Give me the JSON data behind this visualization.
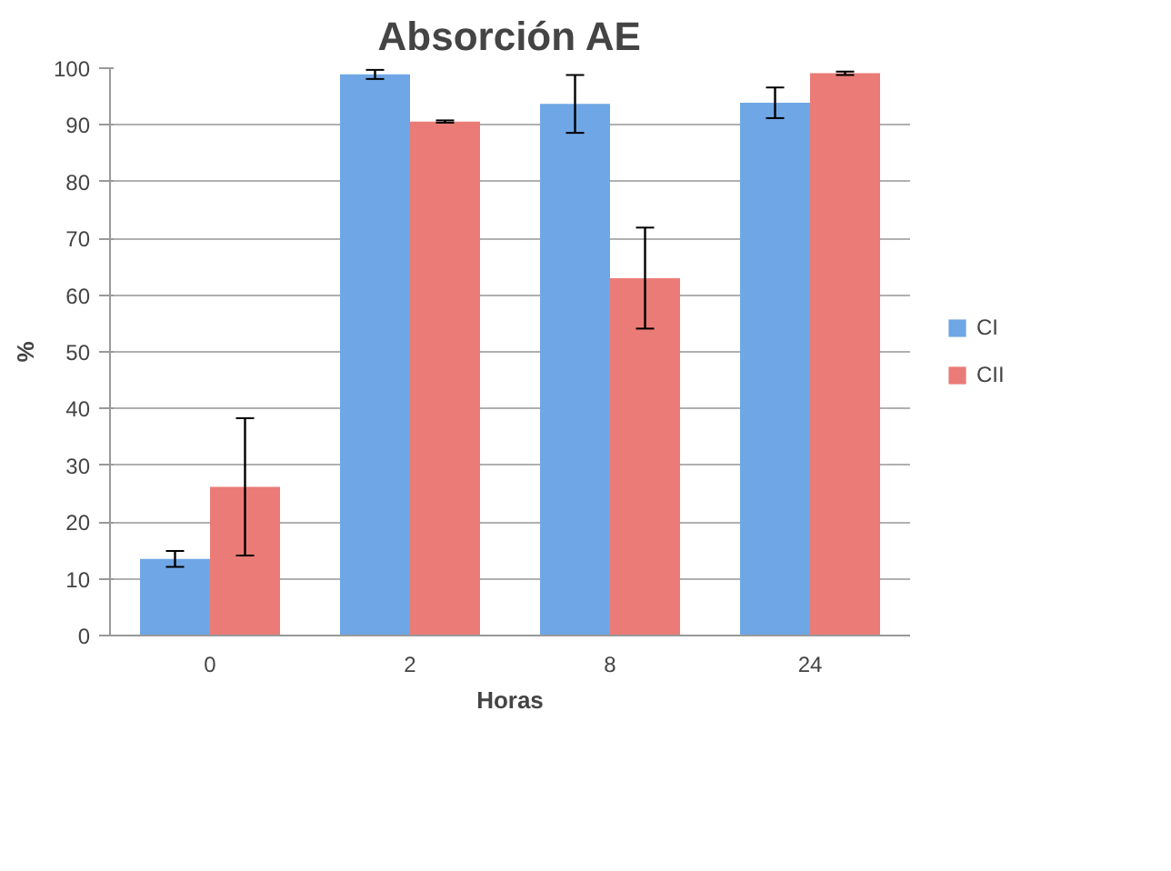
{
  "chart_data": {
    "type": "bar",
    "title": "Absorción AE",
    "xlabel": "Horas",
    "ylabel": "%",
    "categories": [
      "0",
      "2",
      "8",
      "24"
    ],
    "series": [
      {
        "name": "CI",
        "color": "#6fa6e6",
        "values": [
          13.5,
          98.9,
          93.7,
          93.9
        ],
        "errors": [
          1.4,
          0.8,
          5.1,
          2.7
        ]
      },
      {
        "name": "CII",
        "color": "#ea7b76",
        "values": [
          26.2,
          90.6,
          63.0,
          99.1
        ],
        "errors": [
          12.1,
          0.2,
          8.9,
          0.3
        ]
      }
    ],
    "ylim": [
      0,
      100
    ],
    "yticks": [
      0,
      10,
      20,
      30,
      40,
      50,
      60,
      70,
      80,
      90,
      100
    ],
    "grid": "y",
    "legend": "right"
  }
}
